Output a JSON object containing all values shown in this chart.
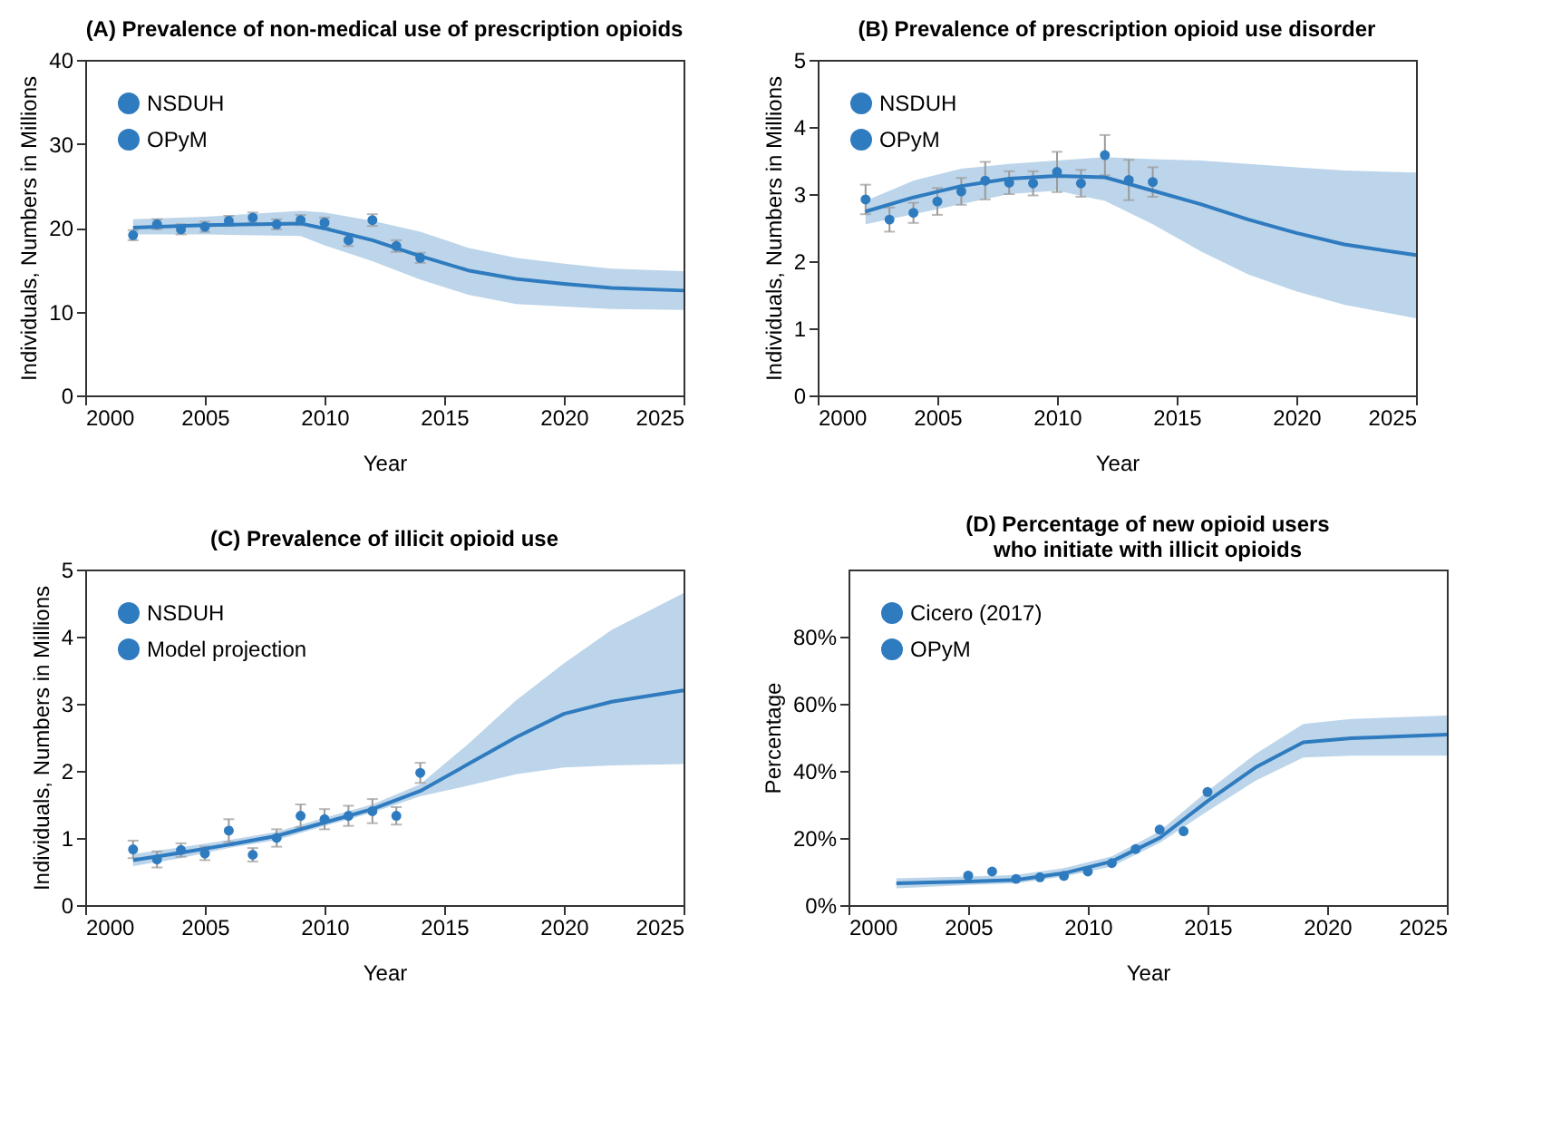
{
  "chart_data": [
    {
      "type": "line",
      "title": "(A) Prevalence of non-medical use of prescription opioids",
      "xlabel": "Year",
      "ylabel": "Individuals, Numbers in Millions",
      "xlim": [
        2000,
        2025
      ],
      "xticks": [
        2000,
        2005,
        2010,
        2015,
        2020,
        2025
      ],
      "ylim": [
        0,
        40
      ],
      "yticks": [
        0,
        10,
        20,
        30,
        40
      ],
      "legend": "top left",
      "series": [
        {
          "name": "NSDUH",
          "type": "scatter",
          "marker": "circle",
          "color": "#2f7bbf",
          "x": [
            2002,
            2003,
            2004,
            2005,
            2006,
            2007,
            2008,
            2009,
            2010,
            2011,
            2012,
            2013,
            2014
          ],
          "values": [
            19.1,
            20.4,
            19.8,
            20.1,
            20.8,
            21.2,
            20.4,
            20.9,
            20.6,
            18.5,
            20.9,
            17.8,
            16.4
          ],
          "errors": [
            0.6,
            0.6,
            0.6,
            0.6,
            0.6,
            0.6,
            0.6,
            0.6,
            0.6,
            0.7,
            0.7,
            0.7,
            0.6
          ]
        },
        {
          "name": "OPyM",
          "color": "#2f7bbf",
          "x": [
            2002,
            2005,
            2009,
            2010,
            2012,
            2014,
            2016,
            2018,
            2020,
            2022,
            2025
          ],
          "values": [
            20.0,
            20.3,
            20.5,
            19.9,
            18.5,
            16.6,
            14.9,
            13.9,
            13.3,
            12.8,
            12.5
          ],
          "lower": [
            19.2,
            19.2,
            19.0,
            17.9,
            16.0,
            13.8,
            12.0,
            10.9,
            10.6,
            10.3,
            10.2
          ],
          "upper": [
            21.0,
            21.3,
            22.0,
            21.8,
            20.8,
            19.5,
            17.6,
            16.4,
            15.7,
            15.1,
            14.8
          ]
        }
      ]
    },
    {
      "type": "line",
      "title": "(B) Prevalence of prescription opioid use disorder",
      "xlabel": "Year",
      "ylabel": "Individuals, Numbers in Millions",
      "xlim": [
        2000,
        2025
      ],
      "xticks": [
        2000,
        2005,
        2010,
        2015,
        2020,
        2025
      ],
      "ylim": [
        0,
        5
      ],
      "yticks": [
        0,
        1,
        2,
        3,
        4,
        5
      ],
      "legend": "top left",
      "series": [
        {
          "name": "NSDUH",
          "type": "scatter",
          "marker": "circle",
          "color": "#2f7bbf",
          "x": [
            2002,
            2003,
            2004,
            2005,
            2006,
            2007,
            2008,
            2009,
            2010,
            2011,
            2012,
            2013,
            2014
          ],
          "values": [
            2.92,
            2.62,
            2.72,
            2.89,
            3.04,
            3.2,
            3.17,
            3.16,
            3.33,
            3.16,
            3.58,
            3.21,
            3.18
          ],
          "errors": [
            0.22,
            0.18,
            0.15,
            0.2,
            0.2,
            0.28,
            0.17,
            0.18,
            0.3,
            0.2,
            0.3,
            0.3,
            0.22
          ]
        },
        {
          "name": "OPyM",
          "color": "#2f7bbf",
          "x": [
            2002,
            2004,
            2006,
            2008,
            2010,
            2012,
            2014,
            2016,
            2018,
            2020,
            2022,
            2025
          ],
          "values": [
            2.74,
            2.95,
            3.12,
            3.23,
            3.27,
            3.25,
            3.05,
            2.85,
            2.62,
            2.42,
            2.25,
            2.09
          ],
          "lower": [
            2.55,
            2.7,
            2.85,
            3.0,
            3.05,
            2.9,
            2.55,
            2.15,
            1.8,
            1.55,
            1.35,
            1.15
          ],
          "upper": [
            2.9,
            3.2,
            3.38,
            3.45,
            3.5,
            3.55,
            3.52,
            3.5,
            3.45,
            3.4,
            3.35,
            3.32
          ]
        }
      ]
    },
    {
      "type": "line",
      "title": "(C) Prevalence of illicit opioid use",
      "xlabel": "Year",
      "ylabel": "Individuals, Numbers in Millions",
      "xlim": [
        2000,
        2025
      ],
      "xticks": [
        2000,
        2005,
        2010,
        2015,
        2020,
        2025
      ],
      "ylim": [
        0,
        5
      ],
      "yticks": [
        0,
        1,
        2,
        3,
        4,
        5
      ],
      "legend": "top left",
      "series": [
        {
          "name": "NSDUH",
          "type": "scatter",
          "marker": "circle",
          "color": "#2f7bbf",
          "x": [
            2002,
            2003,
            2004,
            2005,
            2006,
            2007,
            2008,
            2009,
            2010,
            2011,
            2012,
            2013,
            2014
          ],
          "values": [
            0.83,
            0.68,
            0.82,
            0.77,
            1.11,
            0.75,
            1.0,
            1.33,
            1.28,
            1.33,
            1.4,
            1.33,
            1.97
          ],
          "errors": [
            0.13,
            0.12,
            0.1,
            0.1,
            0.17,
            0.1,
            0.13,
            0.17,
            0.15,
            0.15,
            0.18,
            0.13,
            0.15
          ]
        },
        {
          "name": "Model projection",
          "color": "#2f7bbf",
          "x": [
            2002,
            2004,
            2006,
            2008,
            2010,
            2012,
            2014,
            2016,
            2018,
            2020,
            2022,
            2025
          ],
          "values": [
            0.67,
            0.78,
            0.9,
            1.03,
            1.23,
            1.43,
            1.7,
            2.1,
            2.5,
            2.85,
            3.03,
            3.2
          ],
          "lower": [
            0.58,
            0.7,
            0.85,
            0.97,
            1.18,
            1.38,
            1.62,
            1.78,
            1.95,
            2.05,
            2.08,
            2.1
          ],
          "upper": [
            0.76,
            0.86,
            0.97,
            1.09,
            1.3,
            1.5,
            1.8,
            2.4,
            3.05,
            3.6,
            4.1,
            4.65
          ]
        }
      ]
    },
    {
      "type": "line",
      "title": "(D) Percentage of new opioid users\nwho initiate with illicit opioids",
      "xlabel": "Year",
      "ylabel": "Percentage",
      "xlim": [
        2000,
        2025
      ],
      "xticks": [
        2000,
        2005,
        2010,
        2015,
        2020,
        2025
      ],
      "ylim": [
        0,
        100
      ],
      "yticks": [
        {
          "value": 0,
          "label": "0%"
        },
        {
          "value": 20,
          "label": "20%"
        },
        {
          "value": 40,
          "label": "40%"
        },
        {
          "value": 60,
          "label": "60%"
        },
        {
          "value": 80,
          "label": "80%"
        }
      ],
      "legend": "top left",
      "series": [
        {
          "name": "Cicero (2017)",
          "type": "scatter",
          "marker": "circle",
          "color": "#2f7bbf",
          "x": [
            2005,
            2006,
            2007,
            2008,
            2009,
            2010,
            2011,
            2012,
            2013,
            2014,
            2015
          ],
          "values": [
            8.8,
            10,
            7.8,
            8.3,
            8.7,
            10,
            12.5,
            16.7,
            22.5,
            22,
            33.7
          ]
        },
        {
          "name": "OPyM",
          "color": "#2f7bbf",
          "x": [
            2002,
            2005,
            2007,
            2009,
            2011,
            2013,
            2015,
            2017,
            2019,
            2021,
            2025
          ],
          "values": [
            6.5,
            7,
            7.5,
            9.5,
            13,
            20,
            31,
            41,
            48.5,
            49.7,
            50.8
          ],
          "lower": [
            5,
            6,
            6.5,
            8.5,
            11.5,
            18.5,
            28,
            37,
            44,
            44.5,
            44.5
          ],
          "upper": [
            8,
            8.5,
            9,
            11,
            14.5,
            22,
            34,
            45,
            54,
            55.5,
            56.5
          ]
        }
      ]
    }
  ]
}
